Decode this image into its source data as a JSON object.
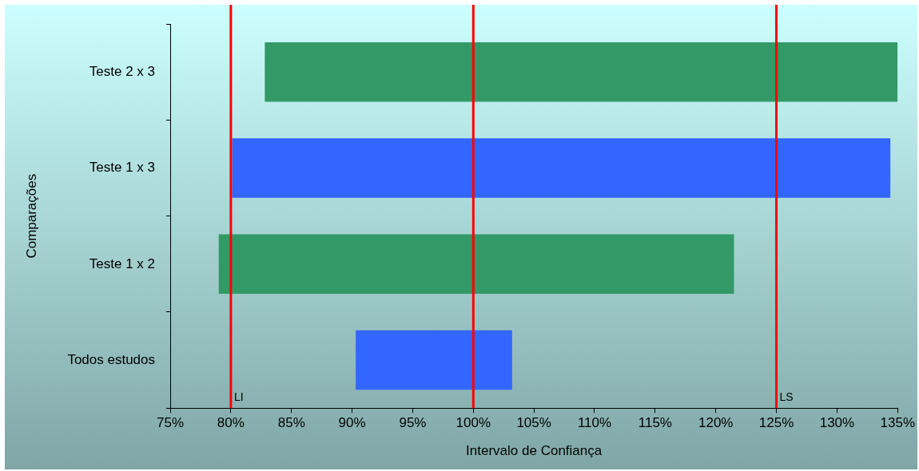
{
  "chart_data": {
    "type": "bar",
    "orientation": "horizontal",
    "xlabel": "Intervalo de Confiança",
    "ylabel": "Comparações",
    "categories": [
      "Teste 2 x 3",
      "Teste 1 x 3",
      "Teste 1 x 2",
      "Todos estudos"
    ],
    "base": [
      82.8,
      80.1,
      79.0,
      90.3
    ],
    "values": [
      52.2,
      54.3,
      42.5,
      12.9
    ],
    "colors": [
      "#339966",
      "#3366ff",
      "#339966",
      "#3366ff"
    ],
    "xlim": [
      75,
      135
    ],
    "xticks": [
      {
        "value": 75,
        "label": "75%"
      },
      {
        "value": 80,
        "label": "80%"
      },
      {
        "value": 85,
        "label": "85%"
      },
      {
        "value": 90,
        "label": "90%"
      },
      {
        "value": 95,
        "label": "95%"
      },
      {
        "value": 100,
        "label": "100%"
      },
      {
        "value": 105,
        "label": "105%"
      },
      {
        "value": 110,
        "label": "110%"
      },
      {
        "value": 115,
        "label": "115%"
      },
      {
        "value": 120,
        "label": "120%"
      },
      {
        "value": 125,
        "label": "125%"
      },
      {
        "value": 130,
        "label": "130%"
      },
      {
        "value": 135,
        "label": "135%"
      }
    ],
    "ref_lines": [
      {
        "axis": "x",
        "value": 80,
        "label": "LI",
        "color": "#ff0000"
      },
      {
        "axis": "x",
        "value": 100,
        "color": "#ff0000"
      },
      {
        "axis": "x",
        "value": 125,
        "label": "LS",
        "color": "#ff0000"
      }
    ],
    "grid": false,
    "legend": false
  }
}
